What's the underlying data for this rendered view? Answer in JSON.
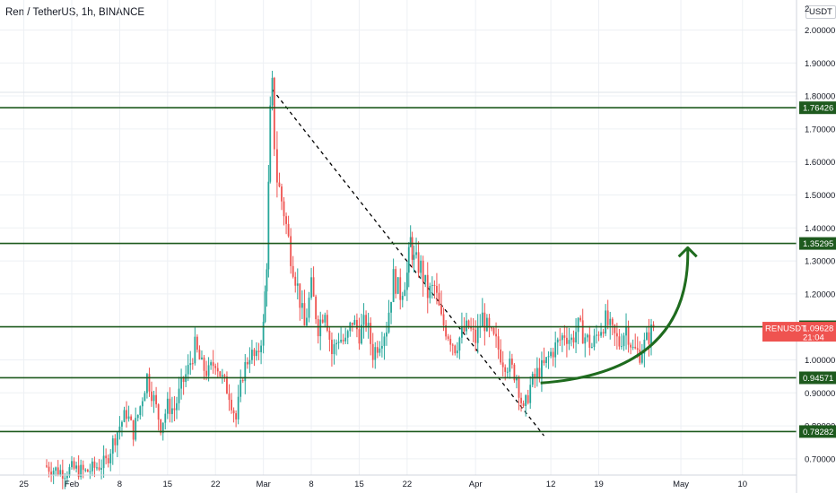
{
  "header": {
    "symbol_title": "Ren / TetherUS, 1h, BINANCE",
    "currency": "USDT"
  },
  "colors": {
    "up": "#26a69a",
    "down": "#ef5350",
    "level_line": "#1e5a1e",
    "level_label_bg": "#1e5a1e",
    "price_label_bg": "#ef5350",
    "arrow": "#1e6b1e",
    "trendline": "#000000",
    "grid": "#edf0f4"
  },
  "chart_data": {
    "type": "candlestick",
    "symbol": "RENUSDT",
    "x_ticks": [
      "25",
      "Feb",
      "8",
      "15",
      "22",
      "Mar",
      "8",
      "15",
      "22",
      "Apr",
      "12",
      "19",
      "May",
      "10"
    ],
    "y_ticks": [
      "2.00000",
      "1.90000",
      "1.80000",
      "1.70000",
      "1.60000",
      "1.50000",
      "1.40000",
      "1.30000",
      "1.20000",
      "1.00000",
      "0.90000",
      "0.80000",
      "0.70000"
    ],
    "y_top_partial_tick": "2",
    "ylim": [
      0.64,
      2.08
    ],
    "levels": [
      {
        "value": 1.76426,
        "label": "1.76426"
      },
      {
        "value": 1.35295,
        "label": "1.35295"
      },
      {
        "value": 1.10046,
        "label": "1.10046"
      },
      {
        "value": 0.94571,
        "label": "0.94571"
      },
      {
        "value": 0.78282,
        "label": "0.78282"
      }
    ],
    "current_price": {
      "symbol": "RENUSDT",
      "value": "1.09628",
      "countdown": "21:04"
    },
    "price_path": [
      {
        "d": -4,
        "p": 0.68
      },
      {
        "d": -3,
        "p": 0.67
      },
      {
        "d": -1,
        "p": 0.66
      },
      {
        "d": 0,
        "p": 0.67
      },
      {
        "d": 2,
        "p": 0.66
      },
      {
        "d": 4,
        "p": 0.68
      },
      {
        "d": 5,
        "p": 0.69
      },
      {
        "d": 6,
        "p": 0.75
      },
      {
        "d": 7,
        "p": 0.8
      },
      {
        "d": 8,
        "p": 0.84
      },
      {
        "d": 9,
        "p": 0.78
      },
      {
        "d": 10,
        "p": 0.86
      },
      {
        "d": 11,
        "p": 0.95
      },
      {
        "d": 12,
        "p": 0.88
      },
      {
        "d": 13,
        "p": 0.8
      },
      {
        "d": 14,
        "p": 0.86
      },
      {
        "d": 15,
        "p": 0.85
      },
      {
        "d": 16,
        "p": 0.92
      },
      {
        "d": 17,
        "p": 0.97
      },
      {
        "d": 18,
        "p": 1.04
      },
      {
        "d": 19,
        "p": 0.98
      },
      {
        "d": 20,
        "p": 0.96
      },
      {
        "d": 21,
        "p": 1.0
      },
      {
        "d": 22,
        "p": 0.94
      },
      {
        "d": 23,
        "p": 0.9
      },
      {
        "d": 24,
        "p": 0.82
      },
      {
        "d": 25,
        "p": 0.96
      },
      {
        "d": 26,
        "p": 1.02
      },
      {
        "d": 27,
        "p": 1.0
      },
      {
        "d": 28,
        "p": 1.1
      },
      {
        "d": 28.5,
        "p": 1.3
      },
      {
        "d": 29,
        "p": 1.74
      },
      {
        "d": 29.3,
        "p": 1.82
      },
      {
        "d": 29.6,
        "p": 1.66
      },
      {
        "d": 30,
        "p": 1.55
      },
      {
        "d": 31,
        "p": 1.45
      },
      {
        "d": 32,
        "p": 1.32
      },
      {
        "d": 33,
        "p": 1.22
      },
      {
        "d": 34,
        "p": 1.1
      },
      {
        "d": 35,
        "p": 1.22
      },
      {
        "d": 36,
        "p": 1.1
      },
      {
        "d": 37,
        "p": 1.16
      },
      {
        "d": 38,
        "p": 1.02
      },
      {
        "d": 39,
        "p": 1.07
      },
      {
        "d": 40,
        "p": 1.05
      },
      {
        "d": 41,
        "p": 1.12
      },
      {
        "d": 42,
        "p": 1.08
      },
      {
        "d": 43,
        "p": 1.12
      },
      {
        "d": 44,
        "p": 1.02
      },
      {
        "d": 45,
        "p": 1.06
      },
      {
        "d": 46,
        "p": 1.1
      },
      {
        "d": 47,
        "p": 1.25
      },
      {
        "d": 48,
        "p": 1.2
      },
      {
        "d": 49,
        "p": 1.26
      },
      {
        "d": 49.5,
        "p": 1.36
      },
      {
        "d": 50,
        "p": 1.3
      },
      {
        "d": 51,
        "p": 1.28
      },
      {
        "d": 52,
        "p": 1.2
      },
      {
        "d": 53,
        "p": 1.22
      },
      {
        "d": 54,
        "p": 1.12
      },
      {
        "d": 55,
        "p": 1.08
      },
      {
        "d": 56,
        "p": 1.04
      },
      {
        "d": 57,
        "p": 1.08
      },
      {
        "d": 58,
        "p": 1.1
      },
      {
        "d": 59,
        "p": 1.06
      },
      {
        "d": 60,
        "p": 1.13
      },
      {
        "d": 61,
        "p": 1.08
      },
      {
        "d": 62,
        "p": 1.05
      },
      {
        "d": 63,
        "p": 1.0
      },
      {
        "d": 64,
        "p": 0.98
      },
      {
        "d": 65,
        "p": 0.95
      },
      {
        "d": 66,
        "p": 0.84
      },
      {
        "d": 67,
        "p": 0.92
      },
      {
        "d": 68,
        "p": 0.96
      },
      {
        "d": 69,
        "p": 0.98
      },
      {
        "d": 70,
        "p": 1.02
      },
      {
        "d": 71,
        "p": 1.05
      },
      {
        "d": 72,
        "p": 1.08
      },
      {
        "d": 73,
        "p": 1.06
      },
      {
        "d": 74,
        "p": 1.1
      },
      {
        "d": 75,
        "p": 1.07
      },
      {
        "d": 76,
        "p": 1.04
      },
      {
        "d": 77,
        "p": 1.09
      },
      {
        "d": 78,
        "p": 1.12
      },
      {
        "d": 79,
        "p": 1.08
      },
      {
        "d": 80,
        "p": 1.05
      },
      {
        "d": 81,
        "p": 1.1
      },
      {
        "d": 82,
        "p": 1.03
      },
      {
        "d": 83,
        "p": 1.02
      },
      {
        "d": 84,
        "p": 1.06
      },
      {
        "d": 85,
        "p": 1.1
      }
    ],
    "trendline": {
      "from": {
        "d": 29.3,
        "p": 1.82
      },
      "to": {
        "d": 69,
        "p": 0.77
      },
      "style": "dashed"
    },
    "projection_arrow": {
      "from": {
        "d": 68.5,
        "p": 0.93
      },
      "to": {
        "d": 90,
        "p": 1.34
      }
    }
  }
}
